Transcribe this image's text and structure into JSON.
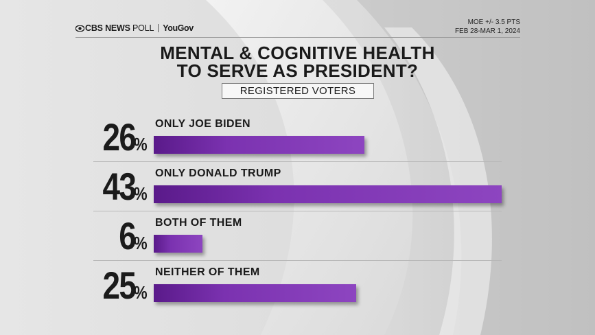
{
  "brand": {
    "cbs": "CBS NEWS",
    "poll": "POLL",
    "yougov": "YouGov"
  },
  "meta": {
    "moe": "MOE +/- 3.5 PTS",
    "dates": "FEB 28-MAR 1, 2024"
  },
  "chart_data": {
    "type": "bar",
    "orientation": "horizontal",
    "title_line1": "MENTAL & COGNITIVE HEALTH",
    "title_line2": "TO SERVE AS PRESIDENT?",
    "subtitle": "REGISTERED VOTERS",
    "categories": [
      "ONLY JOE BIDEN",
      "ONLY DONALD TRUMP",
      "BOTH OF THEM",
      "NEITHER OF THEM"
    ],
    "values": [
      26,
      43,
      6,
      25
    ],
    "value_labels": [
      "26",
      "43",
      "6",
      "25"
    ],
    "unit": "%",
    "xlim": [
      0,
      43
    ],
    "color": "#7b32b0"
  }
}
